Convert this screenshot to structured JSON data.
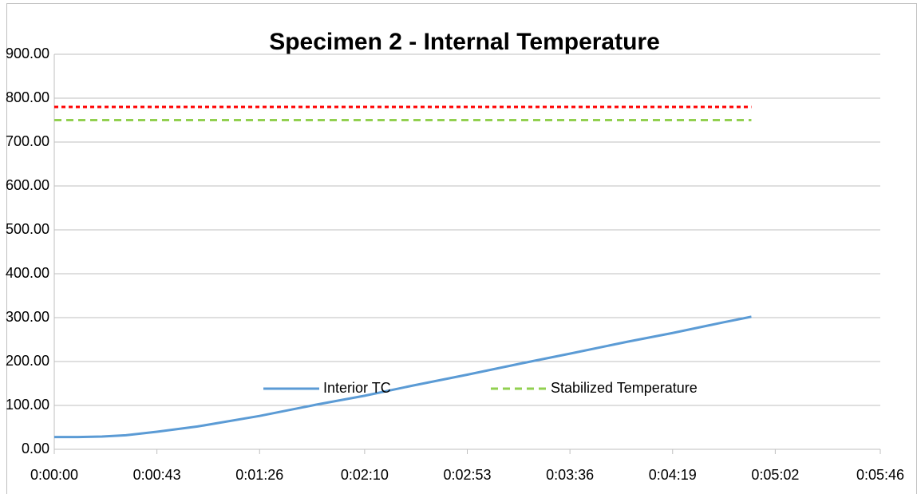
{
  "chart_data": {
    "type": "line",
    "title": "Specimen 2 - Internal Temperature",
    "series": [
      {
        "name": "Interior TC",
        "color": "#5b9bd5",
        "dash": "none",
        "x": [
          0,
          10,
          20,
          30,
          43,
          60,
          86,
          110,
          130,
          150,
          173,
          195,
          216,
          240,
          259,
          280,
          292
        ],
        "values": [
          28,
          28,
          29,
          32,
          40,
          52,
          76,
          102,
          122,
          145,
          170,
          195,
          218,
          245,
          265,
          289,
          302
        ]
      },
      {
        "color": "#ff0000",
        "dash": "5,4",
        "x": [
          0,
          292
        ],
        "values": [
          780,
          780
        ]
      },
      {
        "name": "Stabilized Temperature",
        "color": "#92d050",
        "dash": "9,6",
        "x": [
          0,
          292
        ],
        "values": [
          750,
          750
        ]
      }
    ],
    "xlim": [
      0,
      346
    ],
    "xticks": [
      {
        "value": 0,
        "label": "0:00:00"
      },
      {
        "value": 43,
        "label": "0:00:43"
      },
      {
        "value": 86,
        "label": "0:01:26"
      },
      {
        "value": 130,
        "label": "0:02:10"
      },
      {
        "value": 173,
        "label": "0:02:53"
      },
      {
        "value": 216,
        "label": "0:03:36"
      },
      {
        "value": 259,
        "label": "0:04:19"
      },
      {
        "value": 302,
        "label": "0:05:02"
      },
      {
        "value": 346,
        "label": "0:05:46"
      }
    ],
    "ylim": [
      0,
      900
    ],
    "yticks": [
      {
        "value": 0,
        "label": "0.00"
      },
      {
        "value": 100,
        "label": "100.00"
      },
      {
        "value": 200,
        "label": "200.00"
      },
      {
        "value": 300,
        "label": "300.00"
      },
      {
        "value": 400,
        "label": "400.00"
      },
      {
        "value": 500,
        "label": "500.00"
      },
      {
        "value": 600,
        "label": "600.00"
      },
      {
        "value": 700,
        "label": "700.00"
      },
      {
        "value": 800,
        "label": "800.00"
      },
      {
        "value": 900,
        "label": "900.00"
      }
    ],
    "grid": true,
    "legend": "bottom"
  }
}
